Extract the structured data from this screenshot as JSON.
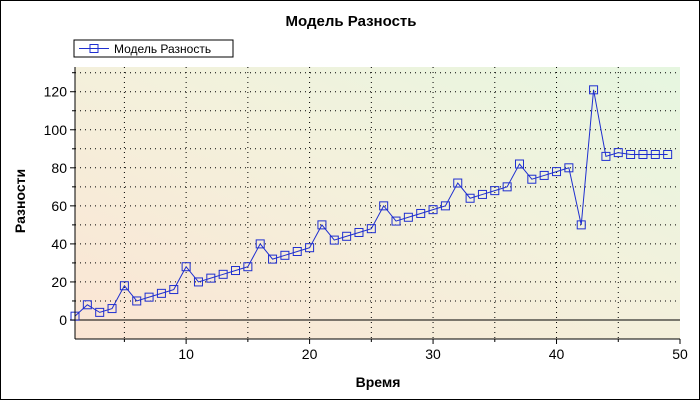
{
  "chart_data": {
    "type": "line",
    "title": "Модель Разность",
    "xlabel": "Время",
    "ylabel": "Разности",
    "xlim": [
      1,
      50
    ],
    "ylim": [
      -10,
      133
    ],
    "xticks": [
      10,
      20,
      30,
      40,
      50
    ],
    "yticks": [
      0,
      20,
      40,
      60,
      80,
      100,
      120
    ],
    "grid": true,
    "legend": "top-left",
    "colors": {
      "series": "#1f2fd0",
      "zero_line": "#000000",
      "grid": "#000000"
    },
    "series": [
      {
        "name": "Модель Разность",
        "marker": "square",
        "x": [
          1,
          2,
          3,
          4,
          5,
          6,
          7,
          8,
          9,
          10,
          11,
          12,
          13,
          14,
          15,
          16,
          17,
          18,
          19,
          20,
          21,
          22,
          23,
          24,
          25,
          26,
          27,
          28,
          29,
          30,
          31,
          32,
          33,
          34,
          35,
          36,
          37,
          38,
          39,
          40,
          41,
          42,
          43,
          44,
          45,
          46,
          47,
          48,
          49
        ],
        "values": [
          2,
          8,
          4,
          6,
          18,
          10,
          12,
          14,
          16,
          28,
          20,
          22,
          24,
          26,
          28,
          40,
          32,
          34,
          36,
          38,
          50,
          42,
          44,
          46,
          48,
          60,
          52,
          54,
          56,
          58,
          60,
          72,
          64,
          66,
          68,
          70,
          82,
          74,
          76,
          78,
          80,
          50,
          121,
          86,
          88,
          87,
          87,
          87,
          87
        ]
      }
    ]
  }
}
